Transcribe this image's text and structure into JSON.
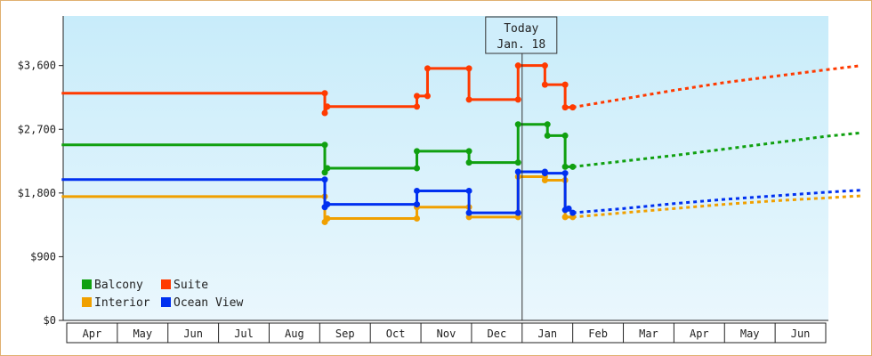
{
  "chart_data": {
    "type": "line",
    "title": "",
    "xlabel": "",
    "ylabel": "",
    "x_ticks": [
      "Apr",
      "May",
      "Jun",
      "Jul",
      "Aug",
      "Sep",
      "Oct",
      "Nov",
      "Dec",
      "Jan",
      "Feb",
      "Mar",
      "Apr",
      "May",
      "Jun"
    ],
    "y_ticks": [
      "$0",
      "$900",
      "$1,800",
      "$2,700",
      "$3,600"
    ],
    "ylim": [
      0,
      4300
    ],
    "today_marker": {
      "line1": "Today",
      "line2": "Jan. 18",
      "month_index": 9.0
    },
    "grid": false,
    "legend_placement": "bottom-left",
    "background_gradient": [
      "#c8ecfa",
      "#eaf7fd"
    ],
    "series": [
      {
        "name": "Balcony",
        "color": "#10a010",
        "points": [
          [
            -0.1,
            2480
          ],
          [
            5.1,
            2480
          ],
          [
            5.1,
            2090
          ],
          [
            5.15,
            2150
          ],
          [
            6.92,
            2150
          ],
          [
            6.92,
            2390
          ],
          [
            7.95,
            2390
          ],
          [
            7.95,
            2230
          ],
          [
            8.92,
            2230
          ],
          [
            8.92,
            2770
          ],
          [
            9.5,
            2770
          ],
          [
            9.5,
            2610
          ],
          [
            9.85,
            2610
          ],
          [
            9.85,
            2170
          ],
          [
            10.0,
            2170
          ]
        ],
        "projection": [
          [
            10.0,
            2170
          ],
          [
            11,
            2250
          ],
          [
            12,
            2330
          ],
          [
            13,
            2420
          ],
          [
            14,
            2510
          ],
          [
            15,
            2600
          ],
          [
            15.7,
            2650
          ]
        ]
      },
      {
        "name": "Suite",
        "color": "#ff3a00",
        "points": [
          [
            -0.1,
            3210
          ],
          [
            5.1,
            3210
          ],
          [
            5.1,
            2930
          ],
          [
            5.15,
            3020
          ],
          [
            6.92,
            3020
          ],
          [
            6.92,
            3170
          ],
          [
            7.13,
            3170
          ],
          [
            7.13,
            3560
          ],
          [
            7.95,
            3560
          ],
          [
            7.95,
            3120
          ],
          [
            8.92,
            3120
          ],
          [
            8.92,
            3600
          ],
          [
            9.45,
            3600
          ],
          [
            9.45,
            3330
          ],
          [
            9.85,
            3330
          ],
          [
            9.85,
            3010
          ],
          [
            10.0,
            3010
          ]
        ],
        "projection": [
          [
            10.0,
            3010
          ],
          [
            11,
            3130
          ],
          [
            12,
            3250
          ],
          [
            13,
            3360
          ],
          [
            14,
            3450
          ],
          [
            15,
            3540
          ],
          [
            15.7,
            3600
          ]
        ]
      },
      {
        "name": "Interior",
        "color": "#f0a000",
        "points": [
          [
            -0.1,
            1750
          ],
          [
            5.1,
            1750
          ],
          [
            5.1,
            1390
          ],
          [
            5.15,
            1440
          ],
          [
            6.92,
            1440
          ],
          [
            6.92,
            1600
          ],
          [
            7.95,
            1600
          ],
          [
            7.95,
            1460
          ],
          [
            8.92,
            1460
          ],
          [
            8.92,
            2030
          ],
          [
            9.45,
            2030
          ],
          [
            9.45,
            1980
          ],
          [
            9.85,
            1980
          ],
          [
            9.85,
            1460
          ],
          [
            10.0,
            1460
          ]
        ],
        "projection": [
          [
            10.0,
            1460
          ],
          [
            11,
            1520
          ],
          [
            12,
            1580
          ],
          [
            13,
            1640
          ],
          [
            14,
            1690
          ],
          [
            15,
            1730
          ],
          [
            15.7,
            1760
          ]
        ]
      },
      {
        "name": "Ocean View",
        "color": "#0030f0",
        "points": [
          [
            -0.1,
            1990
          ],
          [
            5.1,
            1990
          ],
          [
            5.1,
            1600
          ],
          [
            5.15,
            1640
          ],
          [
            6.92,
            1640
          ],
          [
            6.92,
            1830
          ],
          [
            7.95,
            1830
          ],
          [
            7.95,
            1520
          ],
          [
            8.92,
            1520
          ],
          [
            8.92,
            2100
          ],
          [
            9.45,
            2100
          ],
          [
            9.45,
            2080
          ],
          [
            9.85,
            2080
          ],
          [
            9.85,
            1560
          ],
          [
            9.92,
            1580
          ],
          [
            10.0,
            1520
          ]
        ],
        "projection": [
          [
            10.0,
            1520
          ],
          [
            11,
            1580
          ],
          [
            12,
            1650
          ],
          [
            13,
            1710
          ],
          [
            14,
            1760
          ],
          [
            15,
            1810
          ],
          [
            15.7,
            1840
          ]
        ]
      }
    ]
  }
}
